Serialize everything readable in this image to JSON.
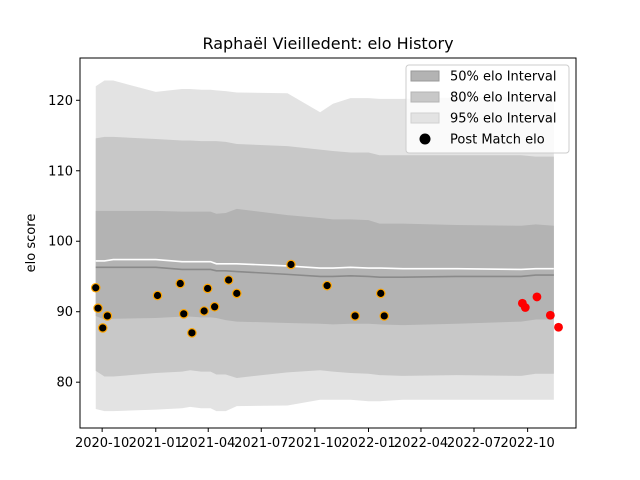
{
  "chart_data": {
    "type": "line",
    "title": "Raphaël Vieilledent: elo History",
    "xlabel": "",
    "ylabel": "elo score",
    "xlim": [
      "2020-08-24",
      "2022-12-23"
    ],
    "ylim": [
      73.5,
      126
    ],
    "x_ticks": [
      "2020-10",
      "2021-01",
      "2021-04",
      "2021-07",
      "2021-10",
      "2022-01",
      "2022-04",
      "2022-07",
      "2022-10"
    ],
    "y_ticks": [
      80,
      90,
      100,
      110,
      120
    ],
    "grid": false,
    "legend_position": "top-right",
    "legend": [
      "50% elo Interval",
      "80% elo Interval",
      "95% elo Interval",
      "Post Match elo"
    ],
    "colors": {
      "band50": "#b3b3b3",
      "band80": "#c8c8c8",
      "band95": "#e3e3e3",
      "median_line": "#8a8a8a",
      "mean_line": "#ffffff",
      "past_point": "#000000",
      "past_point_edge": "#ffa500",
      "recent_point": "#ff0000"
    },
    "bands": {
      "x": [
        "2020-09-20",
        "2020-10-05",
        "2020-10-20",
        "2021-01-01",
        "2021-02-15",
        "2021-03-01",
        "2021-03-20",
        "2021-04-05",
        "2021-04-15",
        "2021-05-01",
        "2021-05-20",
        "2021-08-15",
        "2021-10-10",
        "2021-11-01",
        "2021-12-01",
        "2022-01-01",
        "2022-01-20",
        "2022-03-01",
        "2022-06-01",
        "2022-09-20",
        "2022-10-15",
        "2022-11-15"
      ],
      "lower95": [
        76.2,
        75.9,
        75.9,
        76.1,
        76.3,
        76.5,
        76.3,
        76.3,
        75.9,
        75.9,
        76.6,
        76.7,
        77.5,
        77.5,
        77.5,
        77.3,
        77.3,
        77.5,
        77.5,
        77.5,
        77.5,
        77.5
      ],
      "lower80": [
        81.6,
        80.8,
        80.8,
        81.3,
        81.5,
        81.7,
        81.5,
        81.5,
        81.1,
        81.1,
        80.6,
        81.4,
        81.7,
        81.5,
        81.3,
        81.2,
        81.0,
        80.9,
        81.0,
        80.9,
        81.2,
        81.2
      ],
      "lower50": [
        89.4,
        88.9,
        89.0,
        89.1,
        89.3,
        89.3,
        89.2,
        89.2,
        89.1,
        88.8,
        88.6,
        88.4,
        88.3,
        88.2,
        88.3,
        88.3,
        88.2,
        88.1,
        88.3,
        88.6,
        88.9,
        88.9
      ],
      "median": [
        96.3,
        96.3,
        96.3,
        96.3,
        96.0,
        96.0,
        96.0,
        96.0,
        95.8,
        95.8,
        95.7,
        95.3,
        95.0,
        95.0,
        95.1,
        95.0,
        94.9,
        94.9,
        95.0,
        95.0,
        95.2,
        95.2
      ],
      "mean": [
        97.2,
        97.2,
        97.4,
        97.4,
        97.1,
        97.1,
        97.1,
        97.1,
        96.8,
        96.8,
        96.8,
        96.5,
        96.2,
        96.2,
        96.3,
        96.2,
        96.2,
        96.1,
        96.1,
        96.0,
        96.1,
        96.1
      ],
      "upper50": [
        104.3,
        104.3,
        104.3,
        104.3,
        104.2,
        104.2,
        104.2,
        104.2,
        103.9,
        104.0,
        104.6,
        103.7,
        103.3,
        103.1,
        103.1,
        103.0,
        102.5,
        102.5,
        102.3,
        102.2,
        102.4,
        102.2
      ],
      "upper80": [
        114.6,
        114.8,
        114.8,
        114.5,
        114.3,
        114.3,
        114.2,
        114.2,
        114.2,
        114.1,
        113.8,
        113.5,
        113.0,
        112.8,
        112.6,
        112.6,
        112.2,
        112.2,
        112.2,
        112.2,
        112.0,
        112.0
      ],
      "upper95": [
        122.0,
        122.8,
        122.8,
        121.2,
        121.6,
        121.6,
        121.5,
        121.5,
        121.4,
        121.3,
        121.1,
        121.0,
        118.3,
        119.5,
        120.3,
        120.3,
        120.2,
        120.2,
        120.4,
        120.4,
        120.1,
        120.1
      ]
    },
    "series": [
      {
        "name": "Post Match elo",
        "points": [
          {
            "x": "2020-09-20",
            "y": 93.4
          },
          {
            "x": "2020-09-24",
            "y": 90.5
          },
          {
            "x": "2020-10-02",
            "y": 87.7
          },
          {
            "x": "2020-10-10",
            "y": 89.4
          },
          {
            "x": "2021-01-04",
            "y": 92.3
          },
          {
            "x": "2021-02-12",
            "y": 94.0
          },
          {
            "x": "2021-02-18",
            "y": 89.7
          },
          {
            "x": "2021-03-04",
            "y": 87.0
          },
          {
            "x": "2021-03-25",
            "y": 90.1
          },
          {
            "x": "2021-03-31",
            "y": 93.3
          },
          {
            "x": "2021-04-12",
            "y": 90.7
          },
          {
            "x": "2021-05-06",
            "y": 94.5
          },
          {
            "x": "2021-05-20",
            "y": 92.6
          },
          {
            "x": "2021-08-21",
            "y": 96.7
          },
          {
            "x": "2021-10-22",
            "y": 93.7
          },
          {
            "x": "2021-12-09",
            "y": 89.4
          },
          {
            "x": "2022-01-22",
            "y": 92.6
          },
          {
            "x": "2022-01-28",
            "y": 89.4
          }
        ]
      },
      {
        "name": "Post Match elo",
        "points": [
          {
            "x": "2022-09-22",
            "y": 91.2
          },
          {
            "x": "2022-09-27",
            "y": 90.6
          },
          {
            "x": "2022-10-17",
            "y": 92.1
          },
          {
            "x": "2022-11-09",
            "y": 89.5
          },
          {
            "x": "2022-11-23",
            "y": 87.8
          }
        ]
      }
    ]
  }
}
